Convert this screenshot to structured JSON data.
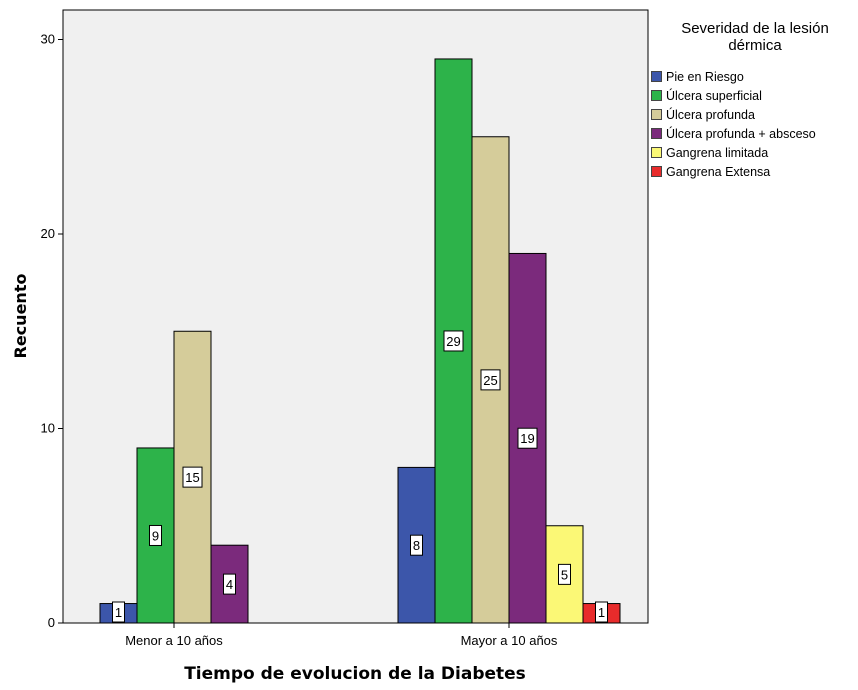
{
  "chart_data": {
    "type": "bar",
    "title": "",
    "xlabel": "Tiempo de evolucion de la Diabetes",
    "ylabel": "Recuento",
    "categories": [
      "Menor a 10 años",
      "Mayor a 10 años"
    ],
    "ylim": [
      0,
      32
    ],
    "yticks": [
      0,
      10,
      20,
      30
    ],
    "grid": false,
    "legend": {
      "title": "Severidad de la lesión dérmica",
      "title_lines": [
        "Severidad de la lesión",
        "dérmica"
      ],
      "placement": "right"
    },
    "series": [
      {
        "name": "Pie en Riesgo",
        "color": "#3c56aa",
        "values": [
          1,
          8
        ]
      },
      {
        "name": "Úlcera superficial",
        "color": "#2db34a",
        "values": [
          9,
          29
        ]
      },
      {
        "name": "Úlcera profunda",
        "color": "#d5cc9a",
        "values": [
          15,
          25
        ]
      },
      {
        "name": "Úlcera profunda + absceso",
        "color": "#7b2a7c",
        "values": [
          4,
          19
        ]
      },
      {
        "name": "Gangrena limitada",
        "color": "#fbf876",
        "values": [
          null,
          5
        ]
      },
      {
        "name": "Gangrena Extensa",
        "color": "#e82b2b",
        "values": [
          null,
          1
        ]
      }
    ]
  }
}
